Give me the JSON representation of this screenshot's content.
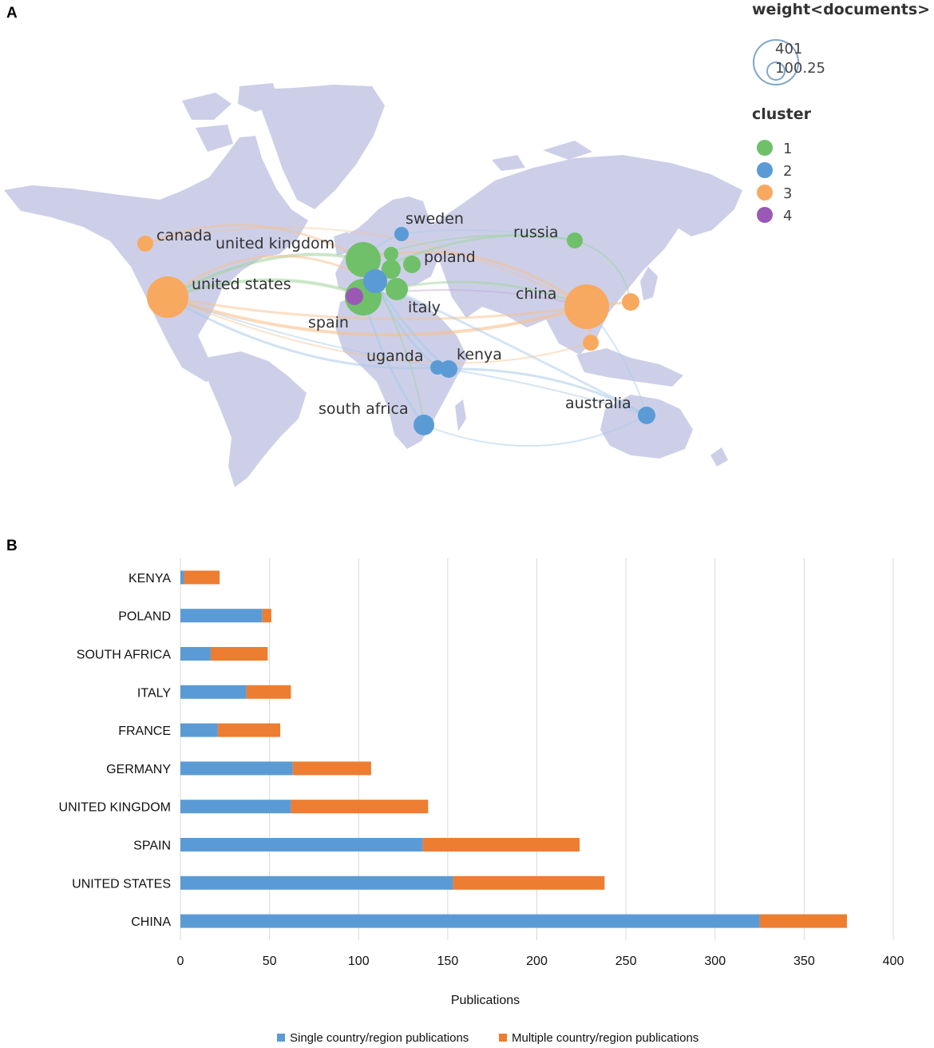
{
  "panels": {
    "a_label": "A",
    "b_label": "B"
  },
  "map": {
    "weight_legend": {
      "title": "weight<documents>",
      "max": "401",
      "mid": "100.25"
    },
    "cluster_legend": {
      "title": "cluster",
      "items": [
        {
          "label": "1",
          "color": "#70c06a"
        },
        {
          "label": "2",
          "color": "#5b9bd5"
        },
        {
          "label": "3",
          "color": "#f8a960"
        },
        {
          "label": "4",
          "color": "#9b59b6"
        }
      ]
    },
    "countries": [
      {
        "label": "canada",
        "cluster": 3
      },
      {
        "label": "united kingdom",
        "cluster": 1
      },
      {
        "label": "united states",
        "cluster": 3
      },
      {
        "label": "sweden",
        "cluster": 2
      },
      {
        "label": "russia",
        "cluster": 1
      },
      {
        "label": "poland",
        "cluster": 1
      },
      {
        "label": "china",
        "cluster": 3
      },
      {
        "label": "italy",
        "cluster": 1
      },
      {
        "label": "spain",
        "cluster": 4
      },
      {
        "label": "uganda",
        "cluster": 2
      },
      {
        "label": "kenya",
        "cluster": 2
      },
      {
        "label": "south africa",
        "cluster": 2
      },
      {
        "label": "australia",
        "cluster": 2
      }
    ]
  },
  "chart_data": {
    "type": "bar",
    "orientation": "horizontal",
    "stacked": true,
    "categories": [
      "KENYA",
      "POLAND",
      "SOUTH AFRICA",
      "ITALY",
      "FRANCE",
      "GERMANY",
      "UNITED KINGDOM",
      "SPAIN",
      "UNITED STATES",
      "CHINA"
    ],
    "series": [
      {
        "name": "Single country/region publications",
        "color": "#5b9bd5",
        "values": [
          2,
          46,
          17,
          37,
          21,
          63,
          62,
          136,
          153,
          325
        ]
      },
      {
        "name": "Multiple country/region publications",
        "color": "#ed7d31",
        "values": [
          20,
          5,
          32,
          25,
          35,
          44,
          77,
          88,
          85,
          49
        ]
      }
    ],
    "xlabel": "Publications",
    "xlim": [
      0,
      400
    ],
    "xticks": [
      "0",
      "50",
      "100",
      "150",
      "200",
      "250",
      "300",
      "350",
      "400"
    ],
    "grid": true,
    "legend_position": "bottom"
  }
}
